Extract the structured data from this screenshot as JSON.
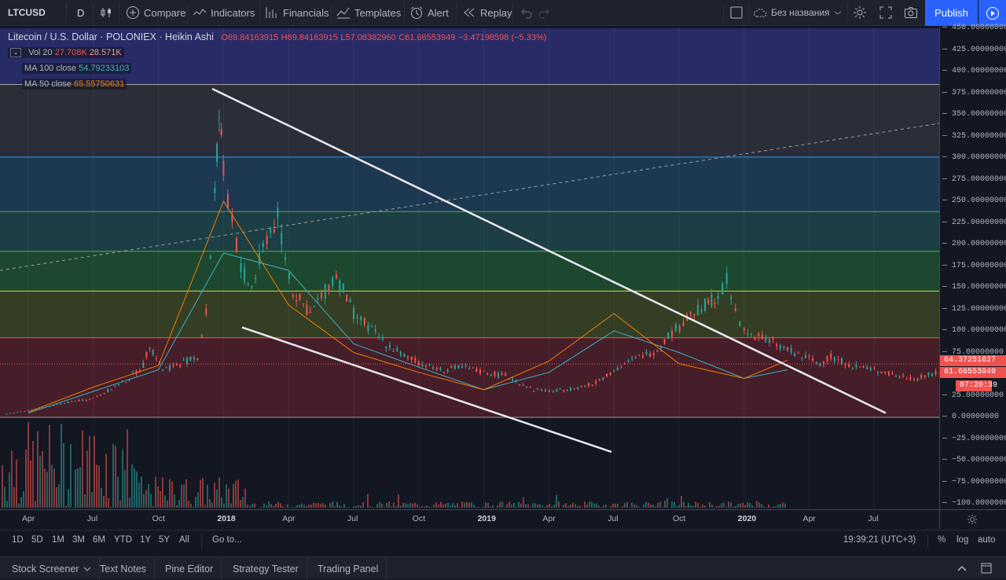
{
  "toolbar": {
    "symbol": "LTCUSD",
    "interval": "D",
    "compare": "Compare",
    "indicators": "Indicators",
    "financials": "Financials",
    "templates": "Templates",
    "alert": "Alert",
    "replay": "Replay",
    "layout_name": "Без названия",
    "publish": "Publish"
  },
  "legend": {
    "title": "Litecoin / U.S. Dollar · POLONIEX · Heikin Ashi",
    "open": "O69.84163915",
    "high": "H69.84163915",
    "low": "L57.08382960",
    "close": "C61.66553949",
    "change": "−3.47198598 (−5.33%)",
    "vol_label": "Vol 20",
    "vol_a": "27.708K",
    "vol_b": "28.571K",
    "ma100_label": "MA 100 close",
    "ma100_value": "54.79233103",
    "ma50_label": "MA 50 close",
    "ma50_value": "65.55750631"
  },
  "price_axis": {
    "labels": [
      "450.00000000",
      "425.00000000",
      "400.00000000",
      "375.00000000",
      "350.00000000",
      "325.00000000",
      "300.00000000",
      "275.00000000",
      "250.00000000",
      "225.00000000",
      "200.00000000",
      "175.00000000",
      "150.00000000",
      "125.00000000",
      "100.00000000",
      "75.00000000",
      "25.00000000",
      "0.00000000",
      "−25.00000000",
      "−50.00000000",
      "−75.00000000",
      "−100.00000000"
    ],
    "tag_ma": "64.37251627",
    "tag_price": "61.66553949",
    "tag_timer": "07:20:39"
  },
  "time_axis": {
    "labels": [
      "Apr",
      "Jul",
      "Oct",
      "2018",
      "Apr",
      "Jul",
      "Oct",
      "2019",
      "Apr",
      "Jul",
      "Oct",
      "2020",
      "Apr",
      "Jul"
    ]
  },
  "bottom_bar": {
    "ranges": [
      "1D",
      "5D",
      "1M",
      "3M",
      "6M",
      "YTD",
      "1Y",
      "5Y",
      "All"
    ],
    "goto": "Go to...",
    "clock": "19:39:21 (UTC+3)",
    "percent": "%",
    "log": "log",
    "auto": "auto"
  },
  "footer": {
    "tabs": [
      "Stock Screener",
      "Text Notes",
      "Pine Editor",
      "Strategy Tester",
      "Trading Panel"
    ]
  },
  "colors": {
    "up": "#26a69a",
    "down": "#ef5350",
    "ma100": "#3bb3c3",
    "ma50": "#f57c00",
    "accent": "#2962ff"
  },
  "chart_data": {
    "type": "line",
    "title": "Litecoin / U.S. Dollar · POLONIEX · Heikin Ashi",
    "x": [
      "2017-04",
      "2017-07",
      "2017-10",
      "2018-01",
      "2018-04",
      "2018-07",
      "2018-10",
      "2019-01",
      "2019-04",
      "2019-07",
      "2019-10",
      "2020-01",
      "2020-03"
    ],
    "series": [
      {
        "name": "MA 100 close",
        "values": [
          5,
          30,
          55,
          190,
          170,
          85,
          58,
          32,
          52,
          100,
          75,
          45,
          55
        ]
      },
      {
        "name": "MA 50 close",
        "values": [
          6,
          35,
          60,
          250,
          130,
          75,
          52,
          32,
          65,
          120,
          62,
          45,
          66
        ]
      }
    ],
    "ylim": [
      -100,
      450
    ],
    "yaxis": "right"
  }
}
